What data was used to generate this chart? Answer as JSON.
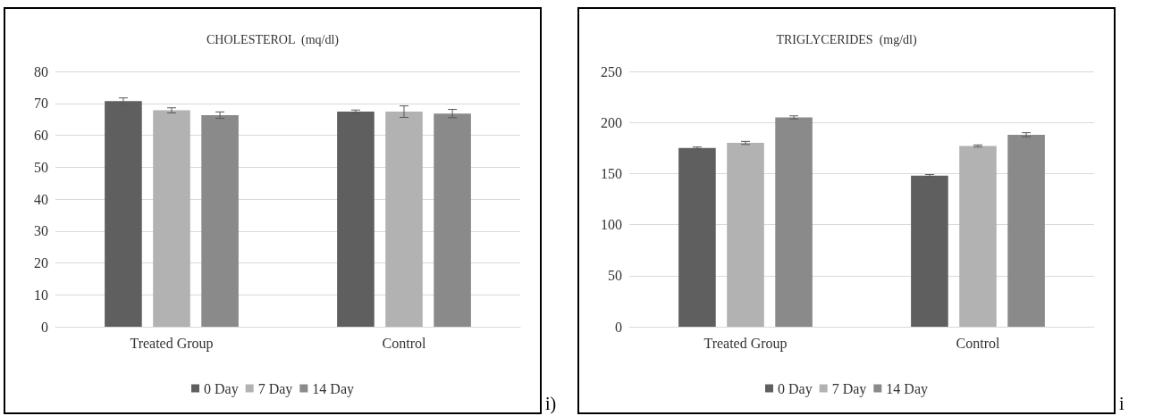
{
  "chart_data": [
    {
      "type": "bar",
      "title": "CHOLESTEROL  (mq/dl)",
      "categories": [
        "Treated Group",
        "Control"
      ],
      "series": [
        {
          "name": "0 Day",
          "color": "#5f5f5f",
          "values": [
            70.7,
            67.4
          ],
          "errors": [
            1,
            0.5
          ]
        },
        {
          "name": "7 Day",
          "color": "#b2b2b2",
          "values": [
            67.8,
            67.4
          ],
          "errors": [
            0.8,
            1.8
          ]
        },
        {
          "name": "14 Day",
          "color": "#8a8a8a",
          "values": [
            66.3,
            66.8
          ],
          "errors": [
            1,
            1.3
          ]
        }
      ],
      "ylim": [
        0,
        80
      ],
      "yticks": [
        0,
        10,
        20,
        30,
        40,
        50,
        60,
        70,
        80
      ],
      "grid": "y",
      "legend": "bottom",
      "annotations": [
        "i)"
      ]
    },
    {
      "type": "bar",
      "title": "TRIGLYCERIDES  (mg/dl)",
      "categories": [
        "Treated Group",
        "Control"
      ],
      "series": [
        {
          "name": "0 Day",
          "color": "#5f5f5f",
          "values": [
            175,
            148
          ],
          "errors": [
            1,
            1
          ]
        },
        {
          "name": "7 Day",
          "color": "#b2b2b2",
          "values": [
            180,
            177
          ],
          "errors": [
            1.5,
            1
          ]
        },
        {
          "name": "14 Day",
          "color": "#8a8a8a",
          "values": [
            205,
            188
          ],
          "errors": [
            1.5,
            2
          ]
        }
      ],
      "ylim": [
        0,
        250
      ],
      "yticks": [
        0,
        50,
        100,
        150,
        200,
        250
      ],
      "grid": "y",
      "legend": "bottom",
      "annotations": [
        "i"
      ]
    }
  ]
}
